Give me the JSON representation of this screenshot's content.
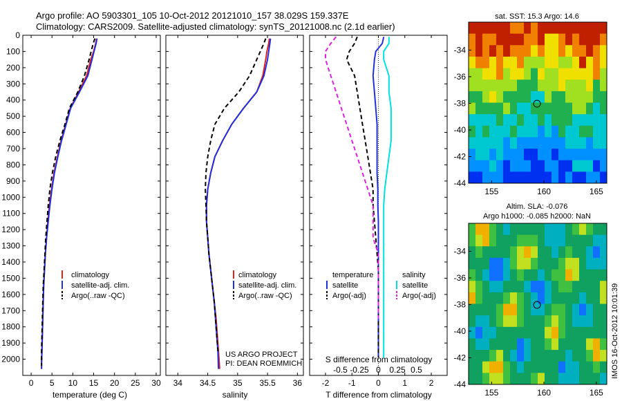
{
  "header": {
    "line1": "Argo profile: AO 5903301_105 10-Oct-2012 20121010_157 38.029S 159.337E",
    "line2": "Climatology: CARS2009. Satellite-adjusted climatology: synTS_20121008.nc (2.1d earlier)"
  },
  "side_stamp": "IMOS 16-Oct-2012 10:01:39",
  "credit": {
    "line1": "US ARGO PROJECT",
    "line2": "PI: DEAN ROEMMICH"
  },
  "colors": {
    "climatology": "#e0201c",
    "satellite": "#1f2fe0",
    "argo": "#000000",
    "satellite_s": "#00e0e0",
    "argo_s": "#e020e0"
  },
  "chart_data": [
    {
      "id": "temperature",
      "type": "line",
      "xlabel": "temperature (deg C)",
      "ylabel": "",
      "xlim": [
        -2,
        31
      ],
      "ylim": [
        2100,
        0
      ],
      "xticks": [
        0,
        5,
        10,
        15,
        20,
        25,
        30
      ],
      "yticks": [
        0,
        100,
        200,
        300,
        400,
        500,
        600,
        700,
        800,
        900,
        1000,
        1100,
        1200,
        1300,
        1400,
        1500,
        1600,
        1700,
        1800,
        1900,
        2000
      ],
      "legend": {
        "placement": "lower-right",
        "entries": [
          "climatology",
          "satellite-adj. clim.",
          "Argo(..raw -QC)"
        ]
      },
      "series": [
        {
          "name": "climatology",
          "color": "#e0201c",
          "dash": false,
          "x": [
            15.7,
            15.5,
            15.0,
            14.3,
            13.3,
            11.4,
            9.4,
            8.3,
            7.2,
            6.3,
            5.5,
            4.9,
            4.4,
            4.0,
            3.7,
            3.4,
            3.2,
            3.0,
            2.9,
            2.8,
            2.7,
            2.6,
            2.5,
            2.5
          ],
          "y": [
            20,
            50,
            100,
            150,
            250,
            350,
            450,
            550,
            650,
            750,
            850,
            950,
            1050,
            1150,
            1250,
            1350,
            1450,
            1550,
            1650,
            1750,
            1850,
            1950,
            2030,
            2060
          ]
        },
        {
          "name": "satellite-adj. clim.",
          "color": "#1f2fe0",
          "dash": false,
          "x": [
            15.8,
            15.6,
            15.1,
            14.6,
            13.6,
            11.6,
            9.5,
            8.4,
            7.3,
            6.4,
            5.6,
            5.0,
            4.5,
            4.1,
            3.7,
            3.4,
            3.2,
            3.0,
            2.9,
            2.8,
            2.7,
            2.6,
            2.5,
            2.5
          ],
          "y": [
            20,
            50,
            100,
            150,
            250,
            350,
            450,
            550,
            650,
            750,
            850,
            950,
            1050,
            1150,
            1250,
            1350,
            1450,
            1550,
            1650,
            1750,
            1850,
            1950,
            2030,
            2060
          ]
        },
        {
          "name": "Argo(..raw -QC)",
          "color": "#000000",
          "dash": true,
          "x": [
            15.3,
            14.9,
            14.4,
            13.9,
            12.8,
            11.2,
            9.2,
            8.1,
            6.9,
            5.9,
            5.1,
            4.5,
            4.1,
            3.8,
            3.5,
            3.3,
            3.1,
            2.9,
            2.8,
            2.7,
            2.6,
            2.5,
            2.5
          ],
          "y": [
            20,
            50,
            100,
            150,
            250,
            350,
            450,
            550,
            650,
            750,
            850,
            950,
            1050,
            1150,
            1250,
            1350,
            1450,
            1550,
            1650,
            1750,
            1850,
            1950,
            2040
          ]
        }
      ]
    },
    {
      "id": "salinity",
      "type": "line",
      "xlabel": "salinity",
      "ylabel": "",
      "xlim": [
        33.8,
        36.1
      ],
      "ylim": [
        2100,
        0
      ],
      "xticks": [
        34,
        34.5,
        35,
        35.5,
        36
      ],
      "legend": {
        "placement": "lower-right",
        "entries": [
          "climatology",
          "satellite-adj. clim.",
          "Argo(..raw -QC)"
        ]
      },
      "series": [
        {
          "name": "climatology",
          "color": "#e0201c",
          "dash": false,
          "x": [
            35.53,
            35.52,
            35.49,
            35.47,
            35.42,
            35.32,
            35.1,
            34.9,
            34.75,
            34.62,
            34.55,
            34.5,
            34.48,
            34.48,
            34.5,
            34.52,
            34.55,
            34.58,
            34.61,
            34.64,
            34.66,
            34.68,
            34.7
          ],
          "y": [
            20,
            50,
            100,
            150,
            250,
            350,
            450,
            550,
            650,
            750,
            850,
            950,
            1050,
            1150,
            1250,
            1350,
            1450,
            1550,
            1650,
            1750,
            1850,
            1950,
            2060
          ]
        },
        {
          "name": "satellite-adj. clim.",
          "color": "#1f2fe0",
          "dash": false,
          "x": [
            35.55,
            35.54,
            35.52,
            35.5,
            35.44,
            35.32,
            35.1,
            34.9,
            34.75,
            34.62,
            34.55,
            34.5,
            34.48,
            34.48,
            34.5,
            34.52,
            34.55,
            34.58,
            34.61,
            34.63,
            34.65,
            34.67,
            34.68
          ],
          "y": [
            20,
            50,
            100,
            150,
            250,
            350,
            450,
            550,
            650,
            750,
            850,
            950,
            1050,
            1150,
            1250,
            1350,
            1450,
            1550,
            1650,
            1750,
            1850,
            1950,
            2060
          ]
        },
        {
          "name": "Argo(..raw -QC)",
          "color": "#000000",
          "dash": true,
          "x": [
            35.47,
            35.44,
            35.38,
            35.32,
            35.2,
            35.02,
            34.78,
            34.62,
            34.55,
            34.5,
            34.47,
            34.46,
            34.47,
            34.48,
            34.5,
            34.52,
            34.55,
            34.58,
            34.61,
            34.63,
            34.65,
            34.67
          ],
          "y": [
            20,
            50,
            100,
            150,
            250,
            350,
            450,
            550,
            650,
            750,
            850,
            950,
            1050,
            1150,
            1250,
            1350,
            1450,
            1550,
            1650,
            1750,
            1850,
            1950
          ]
        }
      ]
    },
    {
      "id": "difference",
      "type": "line",
      "xlabel": "T difference from climatology",
      "xlabel_top": "S difference from climatology",
      "xlim": [
        -2.6,
        2.6
      ],
      "ylim": [
        2100,
        0
      ],
      "xticks": [
        -2,
        -1,
        0,
        1,
        2
      ],
      "xticks_top": [
        -0.5,
        -0.25,
        0,
        0.25,
        0.5
      ],
      "legend": {
        "placement": "lower-center",
        "temperature_title": "temperature",
        "salinity_title": "salinity",
        "entries": [
          "satellite",
          "Argo(-adj)",
          "satellite",
          "Argo(-adj)"
        ]
      },
      "series": [
        {
          "name": "T satellite",
          "color": "#1f2fe0",
          "dash": false,
          "x": [
            0.2,
            0.15,
            -0.1,
            -0.15,
            -0.2,
            -0.15,
            -0.1,
            -0.05,
            -0.05,
            -0.05,
            -0.05,
            -0.02,
            -0.02,
            0.0,
            0.0,
            0.0,
            0.0,
            0.0,
            0.0,
            0.0,
            0.0,
            0.0
          ],
          "y": [
            10,
            50,
            100,
            150,
            250,
            350,
            450,
            550,
            650,
            750,
            850,
            950,
            1050,
            1150,
            1250,
            1350,
            1450,
            1550,
            1650,
            1750,
            1850,
            1990
          ]
        },
        {
          "name": "T Argo(-adj)",
          "color": "#000000",
          "dash": true,
          "x": [
            -0.8,
            -0.9,
            -1.1,
            -1.2,
            -0.9,
            -0.8,
            -0.7,
            -0.6,
            -0.5,
            -0.4,
            -0.3,
            -0.2,
            -0.2,
            -0.15,
            -0.1,
            -0.05,
            0.0,
            0.0,
            0.0,
            0.0,
            0.0,
            0.0
          ],
          "y": [
            10,
            50,
            100,
            150,
            250,
            350,
            450,
            550,
            650,
            750,
            850,
            950,
            1050,
            1150,
            1250,
            1350,
            1450,
            1550,
            1650,
            1750,
            1850,
            1990
          ]
        },
        {
          "name": "S satellite",
          "color": "#00e0e0",
          "dash": false,
          "x": [
            0.1,
            0.1,
            0.05,
            0.05,
            0.1,
            0.1,
            0.12,
            0.12,
            0.12,
            0.1,
            0.08,
            0.06,
            0.05,
            0.05,
            0.05,
            0.05,
            0.05,
            0.05,
            0.05,
            0.05,
            0.05,
            0.05
          ],
          "y": [
            10,
            50,
            100,
            150,
            250,
            350,
            450,
            550,
            650,
            750,
            850,
            950,
            1050,
            1150,
            1250,
            1350,
            1450,
            1550,
            1650,
            1750,
            1850,
            1990
          ]
        },
        {
          "name": "S Argo(-adj)",
          "color": "#e020e0",
          "dash": true,
          "x": [
            -0.4,
            -0.45,
            -0.5,
            -0.5,
            -0.45,
            -0.4,
            -0.35,
            -0.3,
            -0.25,
            -0.2,
            -0.15,
            -0.1,
            -0.05,
            -0.05,
            -0.05,
            0.0,
            0.0,
            0.0,
            0.0,
            0.0
          ],
          "y": [
            10,
            50,
            100,
            150,
            250,
            350,
            450,
            550,
            650,
            750,
            850,
            950,
            1050,
            1150,
            1250,
            1350,
            1450,
            1550,
            1650,
            1750
          ]
        }
      ]
    },
    {
      "id": "sst_map",
      "type": "heatmap",
      "title": "sat. SST: 15.3 Argo: 14.6",
      "xticks": [
        155,
        160,
        165
      ],
      "yticks": [
        -34,
        -36,
        -38,
        -40,
        -42,
        -44
      ],
      "xlim": [
        152.8,
        166
      ],
      "ylim": [
        -44,
        -31.9
      ],
      "marker": {
        "lon": 159.337,
        "lat": -38.029
      }
    },
    {
      "id": "sla_map",
      "type": "heatmap",
      "title_line1": "Altim. SLA: -0.076",
      "title_line2": "Argo h1000: -0.085 h2000: NaN",
      "xticks": [
        155,
        160,
        165
      ],
      "yticks": [
        -34,
        -36,
        -38,
        -40,
        -42,
        -44
      ],
      "xlim": [
        152.8,
        166
      ],
      "ylim": [
        -44,
        -31.9
      ],
      "marker": {
        "lon": 159.337,
        "lat": -38.029
      }
    }
  ]
}
